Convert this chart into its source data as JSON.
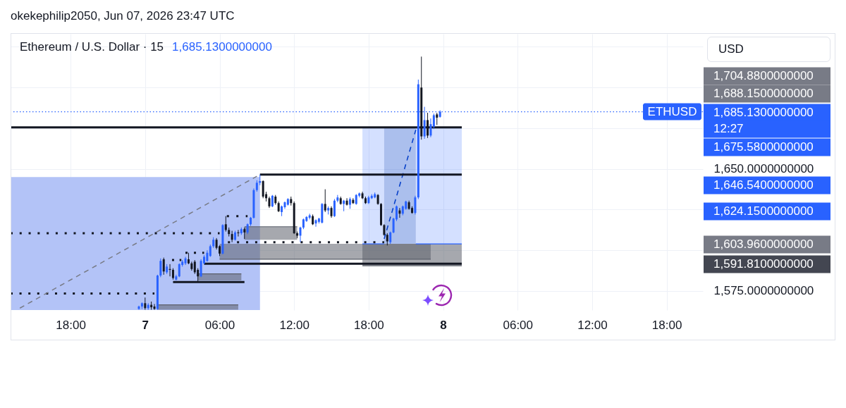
{
  "chart_data": {
    "type": "candlestick",
    "title": "Ethereum / U.S. Dollar · 15",
    "subtitle": "1,685.1300000000",
    "ylabel": "USD",
    "annotations": [
      "okekephilip2050, Jun 07, 2026 23:47 UTC",
      "1,704.8800000000",
      "1,688.1500000000",
      "1,685.1300000000",
      "12:27",
      "1,675.5800000000",
      "1,646.5400000000",
      "1,624.1500000000",
      "1,603.9600000000",
      "1,591.8100000000"
    ],
    "xlim": [
      "2026-06-06T13:10",
      "2026-06-08T20:55"
    ],
    "ylim": [
      1563.3,
      1733
    ],
    "xticks": [
      {
        "value": "2026-06-06T18:00",
        "label": "18:00"
      },
      {
        "value": "2026-06-07T00:00",
        "label": "7"
      },
      {
        "value": "2026-06-07T06:00",
        "label": "06:00"
      },
      {
        "value": "2026-06-07T12:00",
        "label": "12:00"
      },
      {
        "value": "2026-06-07T18:00",
        "label": "18:00"
      },
      {
        "value": "2026-06-08T00:00",
        "label": "8"
      },
      {
        "value": "2026-06-08T06:00",
        "label": "06:00"
      },
      {
        "value": "2026-06-08T12:00",
        "label": "12:00"
      },
      {
        "value": "2026-06-08T18:00",
        "label": "18:00"
      }
    ],
    "yticks": [
      {
        "value": 1575,
        "label": "1,575.0000000000"
      },
      {
        "value": 1600,
        "label": null
      },
      {
        "value": 1625,
        "label": null
      },
      {
        "value": 1650,
        "label": "1,650.0000000000"
      },
      {
        "value": 1675,
        "label": null
      },
      {
        "value": 1700,
        "label": null
      },
      {
        "value": 1725,
        "label": null
      }
    ],
    "grid": true,
    "x": [
      "2026-06-06T23:30",
      "2026-06-06T23:45",
      "2026-06-07T00:00",
      "2026-06-07T00:15",
      "2026-06-07T00:30",
      "2026-06-07T00:45",
      "2026-06-07T01:00",
      "2026-06-07T01:15",
      "2026-06-07T01:30",
      "2026-06-07T01:45",
      "2026-06-07T02:00",
      "2026-06-07T02:15",
      "2026-06-07T02:30",
      "2026-06-07T02:45",
      "2026-06-07T03:00",
      "2026-06-07T03:15",
      "2026-06-07T03:30",
      "2026-06-07T03:45",
      "2026-06-07T04:00",
      "2026-06-07T04:15",
      "2026-06-07T04:30",
      "2026-06-07T04:45",
      "2026-06-07T05:00",
      "2026-06-07T05:15",
      "2026-06-07T05:30",
      "2026-06-07T05:45",
      "2026-06-07T06:00",
      "2026-06-07T06:15",
      "2026-06-07T06:30",
      "2026-06-07T06:45",
      "2026-06-07T07:00",
      "2026-06-07T07:15",
      "2026-06-07T07:30",
      "2026-06-07T07:45",
      "2026-06-07T08:00",
      "2026-06-07T08:15",
      "2026-06-07T08:30",
      "2026-06-07T08:45",
      "2026-06-07T09:00",
      "2026-06-07T09:15",
      "2026-06-07T09:30",
      "2026-06-07T09:45",
      "2026-06-07T10:00",
      "2026-06-07T10:15",
      "2026-06-07T10:30",
      "2026-06-07T10:45",
      "2026-06-07T11:00",
      "2026-06-07T11:15",
      "2026-06-07T11:30",
      "2026-06-07T11:45",
      "2026-06-07T12:00",
      "2026-06-07T12:15",
      "2026-06-07T12:30",
      "2026-06-07T12:45",
      "2026-06-07T13:00",
      "2026-06-07T13:15",
      "2026-06-07T13:30",
      "2026-06-07T13:45",
      "2026-06-07T14:00",
      "2026-06-07T14:15",
      "2026-06-07T14:30",
      "2026-06-07T14:45",
      "2026-06-07T15:00",
      "2026-06-07T15:15",
      "2026-06-07T15:30",
      "2026-06-07T15:45",
      "2026-06-07T16:00",
      "2026-06-07T16:15",
      "2026-06-07T16:30",
      "2026-06-07T16:45",
      "2026-06-07T17:00",
      "2026-06-07T17:15",
      "2026-06-07T17:30",
      "2026-06-07T17:45",
      "2026-06-07T18:00",
      "2026-06-07T18:15",
      "2026-06-07T18:30",
      "2026-06-07T18:45",
      "2026-06-07T19:00",
      "2026-06-07T19:15",
      "2026-06-07T19:30",
      "2026-06-07T19:45",
      "2026-06-07T20:00",
      "2026-06-07T20:15",
      "2026-06-07T20:30",
      "2026-06-07T20:45",
      "2026-06-07T21:00",
      "2026-06-07T21:15",
      "2026-06-07T21:30",
      "2026-06-07T21:45",
      "2026-06-07T22:00",
      "2026-06-07T22:15",
      "2026-06-07T22:30",
      "2026-06-07T22:45",
      "2026-06-07T23:00",
      "2026-06-07T23:15",
      "2026-06-07T23:30",
      "2026-06-07T23:45"
    ],
    "ohlc": [
      [
        1564,
        1566,
        1563.5,
        1565.5
      ],
      [
        1565.5,
        1568,
        1564,
        1567.5
      ],
      [
        1567.5,
        1571,
        1563.5,
        1564.5
      ],
      [
        1564.5,
        1567.5,
        1563.5,
        1566.5
      ],
      [
        1566.5,
        1568.5,
        1563.5,
        1565
      ],
      [
        1565.5,
        1567,
        1563.5,
        1564
      ],
      [
        1564,
        1585,
        1563.5,
        1584.5
      ],
      [
        1584.5,
        1595,
        1583.5,
        1593.5
      ],
      [
        1594.5,
        1595.5,
        1585,
        1587
      ],
      [
        1586.5,
        1591.5,
        1585.5,
        1590
      ],
      [
        1588.5,
        1591.5,
        1584,
        1588
      ],
      [
        1588,
        1589,
        1582,
        1583
      ],
      [
        1582,
        1585,
        1581.5,
        1584
      ],
      [
        1584,
        1592,
        1583.5,
        1591.5
      ],
      [
        1591,
        1594,
        1590,
        1593
      ],
      [
        1592,
        1596,
        1591,
        1595
      ],
      [
        1594.5,
        1598.5,
        1591.5,
        1592
      ],
      [
        1592,
        1593,
        1587.5,
        1588.5
      ],
      [
        1593,
        1594,
        1585.5,
        1586.5
      ],
      [
        1588,
        1589,
        1581,
        1584
      ],
      [
        1584,
        1594.5,
        1583.5,
        1593.5
      ],
      [
        1592,
        1597,
        1591.5,
        1596
      ],
      [
        1593.5,
        1600,
        1593,
        1598.5
      ],
      [
        1596.5,
        1603.5,
        1596,
        1602.5
      ],
      [
        1602.5,
        1608,
        1601.5,
        1606.5
      ],
      [
        1606.5,
        1607.5,
        1600.5,
        1601.5
      ],
      [
        1602.5,
        1603,
        1596.5,
        1598
      ],
      [
        1598,
        1616,
        1597.5,
        1615.5
      ],
      [
        1616,
        1621,
        1611.5,
        1612.5
      ],
      [
        1612.5,
        1614,
        1608.5,
        1610
      ],
      [
        1610,
        1612,
        1605,
        1606.5
      ],
      [
        1606.5,
        1612,
        1606,
        1611
      ],
      [
        1611,
        1612.5,
        1608.5,
        1610.5
      ],
      [
        1610.5,
        1614,
        1609.5,
        1613
      ],
      [
        1613,
        1614,
        1607,
        1611
      ],
      [
        1611,
        1616.5,
        1610,
        1616
      ],
      [
        1616,
        1620.5,
        1615,
        1620
      ],
      [
        1620,
        1638,
        1619.5,
        1637
      ],
      [
        1637,
        1643,
        1636,
        1641.5
      ],
      [
        1641.5,
        1646.54,
        1640,
        1642.5
      ],
      [
        1642.5,
        1643,
        1632,
        1633
      ],
      [
        1634.5,
        1636,
        1630,
        1632
      ],
      [
        1632,
        1633,
        1626,
        1627
      ],
      [
        1627,
        1634,
        1626.5,
        1633.5
      ],
      [
        1633,
        1634,
        1628,
        1629
      ],
      [
        1629,
        1630,
        1623.5,
        1624
      ],
      [
        1623.5,
        1627.5,
        1621,
        1627
      ],
      [
        1626.5,
        1630,
        1625.5,
        1629.5
      ],
      [
        1628,
        1632,
        1627.5,
        1631.5
      ],
      [
        1631.5,
        1633,
        1627.5,
        1629
      ],
      [
        1629,
        1630,
        1610,
        1610.5
      ],
      [
        1610.5,
        1611.5,
        1607.5,
        1609
      ],
      [
        1609,
        1614.5,
        1605,
        1614
      ],
      [
        1614,
        1619.5,
        1613,
        1619
      ],
      [
        1618,
        1621,
        1617.5,
        1620.5
      ],
      [
        1620,
        1622.5,
        1619,
        1621.5
      ],
      [
        1621,
        1622,
        1615.5,
        1616
      ],
      [
        1616.5,
        1619,
        1614.5,
        1618.5
      ],
      [
        1617.5,
        1620,
        1616.5,
        1619.5
      ],
      [
        1617,
        1629,
        1616.5,
        1628.5
      ],
      [
        1628.5,
        1637.5,
        1623.5,
        1624.5
      ],
      [
        1624.5,
        1627,
        1622,
        1626
      ],
      [
        1626,
        1627,
        1620,
        1621
      ],
      [
        1621,
        1631.5,
        1620.5,
        1630.5
      ],
      [
        1630.5,
        1634,
        1629.5,
        1632.5
      ],
      [
        1632,
        1633,
        1628,
        1628.5
      ],
      [
        1628.5,
        1631,
        1624,
        1630.5
      ],
      [
        1630.5,
        1632,
        1627.5,
        1628
      ],
      [
        1628,
        1632.5,
        1625.5,
        1631.5
      ],
      [
        1631,
        1632,
        1628.5,
        1629
      ],
      [
        1628.5,
        1634.5,
        1628,
        1634
      ],
      [
        1633.5,
        1635.5,
        1632.5,
        1635
      ],
      [
        1635,
        1636,
        1631.5,
        1632
      ],
      [
        1632,
        1633,
        1628.5,
        1629
      ],
      [
        1629,
        1633.5,
        1628.5,
        1632.5
      ],
      [
        1632,
        1634.5,
        1631.5,
        1633.5
      ],
      [
        1632.5,
        1635.5,
        1632,
        1634.5
      ],
      [
        1634,
        1634.5,
        1628,
        1628.5
      ],
      [
        1628.5,
        1629,
        1615,
        1615.5
      ],
      [
        1615.5,
        1616,
        1609,
        1609.5
      ],
      [
        1609.5,
        1610.5,
        1603,
        1605.5
      ],
      [
        1605,
        1611.5,
        1604,
        1611
      ],
      [
        1611,
        1620,
        1610.5,
        1619.5
      ],
      [
        1619,
        1627.5,
        1618,
        1627
      ],
      [
        1624.5,
        1626,
        1620,
        1622.5
      ],
      [
        1622.5,
        1627.5,
        1621.5,
        1627
      ],
      [
        1625.5,
        1630.5,
        1625,
        1630
      ],
      [
        1629.5,
        1630.5,
        1625,
        1625.5
      ],
      [
        1626,
        1627,
        1622.5,
        1623
      ],
      [
        1623,
        1633.5,
        1622,
        1632.5
      ],
      [
        1632.5,
        1704.88,
        1631.5,
        1702
      ],
      [
        1700,
        1719,
        1668,
        1670
      ],
      [
        1670,
        1688.15,
        1668.5,
        1680
      ],
      [
        1680,
        1684.5,
        1669,
        1670.5
      ],
      [
        1670.5,
        1681,
        1669.5,
        1677.5
      ],
      [
        1676,
        1684,
        1674.5,
        1683
      ],
      [
        1683.5,
        1684.5,
        1677,
        1681.5
      ],
      [
        1682,
        1686,
        1681.5,
        1685.13
      ]
    ],
    "colors": [
      "#2962ff",
      "#2962ff",
      "#131722",
      "#2962ff",
      "#131722",
      "#131722",
      "#2962ff",
      "#2962ff",
      "#131722",
      "#2962ff",
      "#131722",
      "#131722",
      "#2962ff",
      "#2962ff",
      "#2962ff",
      "#2962ff",
      "#131722",
      "#131722",
      "#131722",
      "#131722",
      "#2962ff",
      "#2962ff",
      "#2962ff",
      "#2962ff",
      "#2962ff",
      "#131722",
      "#131722",
      "#2962ff",
      "#131722",
      "#131722",
      "#131722",
      "#2962ff",
      "#131722",
      "#2962ff",
      "#131722",
      "#2962ff",
      "#2962ff",
      "#2962ff",
      "#2962ff",
      "#2962ff",
      "#131722",
      "#131722",
      "#131722",
      "#2962ff",
      "#131722",
      "#131722",
      "#2962ff",
      "#2962ff",
      "#2962ff",
      "#131722",
      "#131722",
      "#131722",
      "#2962ff",
      "#2962ff",
      "#2962ff",
      "#2962ff",
      "#131722",
      "#2962ff",
      "#2962ff",
      "#2962ff",
      "#131722",
      "#2962ff",
      "#131722",
      "#2962ff",
      "#2962ff",
      "#131722",
      "#2962ff",
      "#131722",
      "#2962ff",
      "#131722",
      "#2962ff",
      "#2962ff",
      "#131722",
      "#131722",
      "#2962ff",
      "#2962ff",
      "#2962ff",
      "#131722",
      "#131722",
      "#131722",
      "#131722",
      "#2962ff",
      "#2962ff",
      "#2962ff",
      "#131722",
      "#2962ff",
      "#2962ff",
      "#131722",
      "#131722",
      "#2962ff",
      "#2962ff",
      "#131722",
      "#2962ff",
      "#131722",
      "#2962ff",
      "#2962ff",
      "#131722",
      "#2962ff"
    ],
    "series": [
      {
        "type": "area",
        "x": [
          "2026-06-06T13:10",
          "2026-06-07T09:15"
        ],
        "values": [
          1645,
          1645
        ],
        "color": "#b3c3f7"
      },
      {
        "type": "line",
        "x": [
          "2026-06-07T17:30",
          "2026-06-07T19:15"
        ],
        "values": [
          1603.96,
          1603.96
        ],
        "lower": [
          1603.96,
          1603.96
        ],
        "upper": [
          1675.58,
          1675.58
        ],
        "color": "#2962ff"
      },
      {
        "type": "line",
        "x": [
          "2026-06-07T19:15",
          "2026-06-07T21:48"
        ],
        "values": [
          1607,
          1674
        ],
        "lower": [
          1603.96,
          1603.96
        ],
        "upper": [
          1675.58,
          1675.58
        ],
        "color": "#003cc8",
        "line_style": "dashed"
      },
      {
        "type": "line",
        "x": [
          "2026-06-07T21:48",
          "2026-06-08T01:30"
        ],
        "values": [
          1603.96,
          1603.96
        ],
        "lower": [
          1603.96,
          1603.96
        ],
        "upper": [
          1675.58,
          1675.58
        ],
        "color": "#2962ff"
      },
      {
        "type": "line",
        "x": [
          "2026-06-07T17:30",
          "2026-06-08T01:30"
        ],
        "values": [
          1590.5,
          1590.5
        ],
        "lower": [
          1590.5,
          1590.5
        ],
        "upper": [
          1603.96,
          1603.96
        ],
        "color": "#5d606b"
      },
      {
        "type": "line",
        "x": [
          "2026-06-07T06:00",
          "2026-06-07T23:00"
        ],
        "values": [
          1594.5,
          1594.5
        ],
        "lower": [
          1594.5,
          1594.5
        ],
        "upper": [
          1603.96,
          1603.96
        ],
        "color": "#5d606b"
      },
      {
        "type": "line",
        "x": [
          "2026-06-07T08:00",
          "2026-06-07T12:15"
        ],
        "values": [
          1614.5,
          1614.5
        ],
        "lower": [
          1606.5,
          1606.5
        ],
        "upper": [
          1614.5,
          1614.5
        ],
        "color": "#5d606b"
      },
      {
        "type": "line",
        "x": [
          "2026-06-07T04:15",
          "2026-06-07T07:45"
        ],
        "values": [
          1585.5,
          1585.5
        ],
        "lower": [
          1581.5,
          1581.5
        ],
        "upper": [
          1585.5,
          1585.5
        ],
        "color": "#5d606b"
      },
      {
        "type": "line",
        "x": [
          "2026-06-07T01:00",
          "2026-06-07T07:30"
        ],
        "values": [
          1566.5,
          1566.5
        ],
        "lower": [
          1563.5,
          1563.5
        ],
        "upper": [
          1566.5,
          1566.5
        ],
        "color": "#5d606b"
      },
      {
        "type": "line",
        "x": [
          "2026-06-06T13:10",
          "2026-06-08T01:30"
        ],
        "values": [
          1675.58,
          1675.58
        ],
        "color": "#131722"
      },
      {
        "type": "line",
        "x": [
          "2026-06-07T09:15",
          "2026-06-08T01:30"
        ],
        "values": [
          1646.54,
          1646.54
        ],
        "color": "#131722"
      },
      {
        "type": "line",
        "x": [
          "2026-06-07T04:45",
          "2026-06-08T01:30"
        ],
        "values": [
          1591.81,
          1591.81
        ],
        "color": "#131722"
      },
      {
        "type": "line",
        "x": [
          "2026-06-07T02:15",
          "2026-06-07T08:00"
        ],
        "values": [
          1580.5,
          1580.5
        ],
        "color": "#131722"
      },
      {
        "type": "line",
        "x": [
          "2026-06-06T13:10",
          "2026-06-07T06:00"
        ],
        "values": [
          1610.5,
          1610.5
        ],
        "color": "#131722",
        "line_style": "dotted"
      },
      {
        "type": "line",
        "x": [
          "2026-06-06T13:10",
          "2026-06-07T00:45"
        ],
        "values": [
          1573.5,
          1573.5
        ],
        "color": "#131722",
        "line_style": "dotted"
      },
      {
        "type": "line",
        "x": [
          "2026-06-07T06:40",
          "2026-06-07T19:15"
        ],
        "values": [
          1605,
          1605
        ],
        "color": "#131722",
        "line_style": "dotted"
      },
      {
        "type": "line",
        "x": [
          "2026-06-07T06:35",
          "2026-06-07T08:15"
        ],
        "values": [
          1621,
          1621
        ],
        "color": "#131722",
        "line_style": "dotted"
      },
      {
        "type": "line",
        "x": [
          "2026-06-07T03:15",
          "2026-06-07T04:45"
        ],
        "values": [
          1598.5,
          1598.5
        ],
        "color": "#131722",
        "line_style": "dotted"
      },
      {
        "type": "line",
        "x": [
          "2026-06-07T02:10",
          "2026-06-07T02:55"
        ],
        "values": [
          1594,
          1594
        ],
        "color": "#131722",
        "line_style": "dotted"
      },
      {
        "type": "line",
        "x": [
          "2026-06-06T13:55",
          "2026-06-07T09:00"
        ],
        "values": [
          1564.5,
          1645.5
        ],
        "color": "#787b86",
        "line_style": "dashed"
      }
    ],
    "ref_lines": [
      {
        "axis": "y",
        "value": 1685.13,
        "label": "ETHUSD",
        "color": "#2962ff",
        "line_style": "dotted"
      }
    ]
  }
}
